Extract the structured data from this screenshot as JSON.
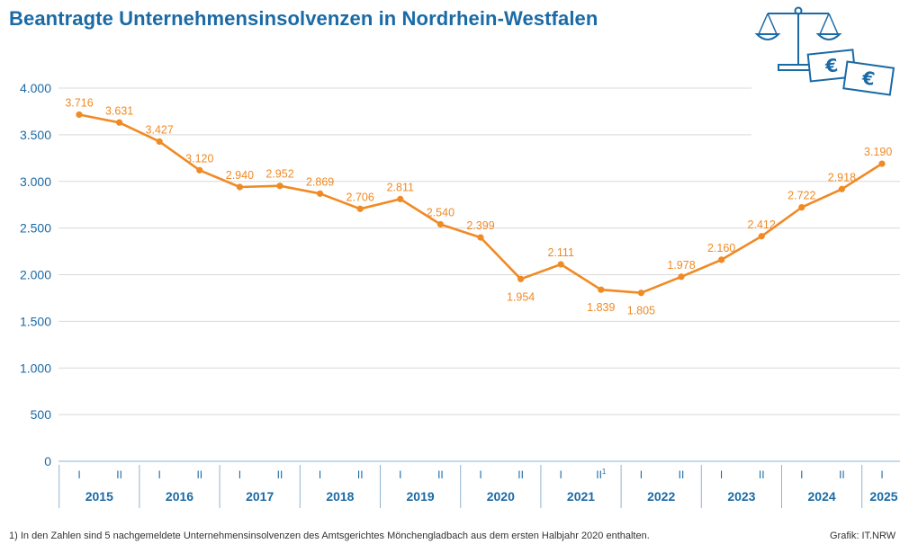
{
  "title": "Beantragte Unternehmensinsolvenzen in Nordrhein-Westfalen",
  "footnote": "1) In den Zahlen sind 5 nachgemeldete Unternehmensinsolvenzen des Amtsgerichtes Mönchengladbach aus dem ersten Halbjahr 2020 enthalten.",
  "source": "Grafik: IT.NRW",
  "icons": {
    "illustration": "scales-with-euro-banknotes-icon",
    "currency_symbol": "€"
  },
  "colors": {
    "line": "#f08a24",
    "accent": "#1a6aa6",
    "grid": "#d9d9d9"
  },
  "chart_data": {
    "type": "line",
    "title": "Beantragte Unternehmensinsolvenzen in Nordrhein-Westfalen",
    "xlabel": "",
    "ylabel": "",
    "ylim": [
      0,
      4000
    ],
    "yticks": [
      0,
      500,
      1000,
      1500,
      2000,
      2500,
      3000,
      3500,
      4000
    ],
    "ytick_labels": [
      "0",
      "500",
      "1.000",
      "1.500",
      "2.000",
      "2.500",
      "3.000",
      "3.500",
      "4.000"
    ],
    "grid": "horizontal",
    "years": [
      "2015",
      "2016",
      "2017",
      "2018",
      "2019",
      "2020",
      "2021",
      "2022",
      "2023",
      "2024",
      "2025"
    ],
    "x": [
      "I",
      "II",
      "I",
      "II",
      "I",
      "II",
      "I",
      "II",
      "I",
      "II",
      "I",
      "II",
      "I",
      "II",
      "I",
      "II",
      "I",
      "II",
      "I",
      "II",
      "I"
    ],
    "footnote_marker": {
      "index": 13,
      "text": "1"
    },
    "values": [
      3716,
      3631,
      3427,
      3120,
      2940,
      2952,
      2869,
      2706,
      2811,
      2540,
      2399,
      1954,
      2111,
      1839,
      1805,
      1978,
      2160,
      2412,
      2722,
      2918,
      3190
    ],
    "value_labels": [
      "3.716",
      "3.631",
      "3.427",
      "3.120",
      "2.940",
      "2.952",
      "2.869",
      "2.706",
      "2.811",
      "2.540",
      "2.399",
      "1.954",
      "2.111",
      "1.839",
      "1.805",
      "1.978",
      "2.160",
      "2.412",
      "2.722",
      "2.918",
      "3.190"
    ]
  }
}
